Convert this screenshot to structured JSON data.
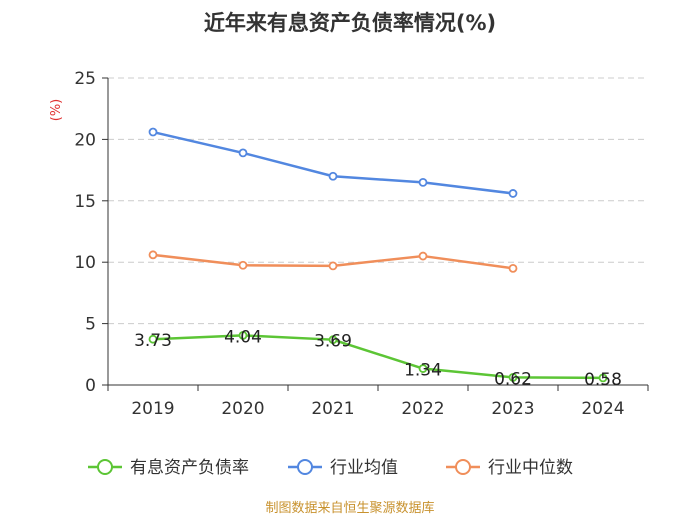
{
  "chart_data": {
    "type": "line",
    "title": "近年来有息资产负债率情况(%)",
    "ylabel": "(%)",
    "xlabel": "",
    "ylim": [
      0,
      25
    ],
    "yticks": [
      "0",
      "5",
      "10",
      "15",
      "20",
      "25"
    ],
    "categories": [
      "2019",
      "2020",
      "2021",
      "2022",
      "2023",
      "2024"
    ],
    "grid": true,
    "legend_position": "bottom",
    "series": [
      {
        "name": "有息资产负债率",
        "color": "#5cc535",
        "values": [
          3.73,
          4.04,
          3.69,
          1.34,
          0.62,
          0.58
        ],
        "labels": [
          "3.73",
          "4.04",
          "3.69",
          "1.34",
          "0.62",
          "0.58"
        ],
        "show_labels": true
      },
      {
        "name": "行业均值",
        "color": "#5287e0",
        "values": [
          20.6,
          18.9,
          17.0,
          16.5,
          15.6,
          null
        ],
        "show_labels": false
      },
      {
        "name": "行业中位数",
        "color": "#f08e5a",
        "values": [
          10.6,
          9.75,
          9.7,
          10.5,
          9.5,
          null
        ],
        "show_labels": false
      }
    ]
  },
  "footer": {
    "source": "制图数据来自恒生聚源数据库"
  }
}
